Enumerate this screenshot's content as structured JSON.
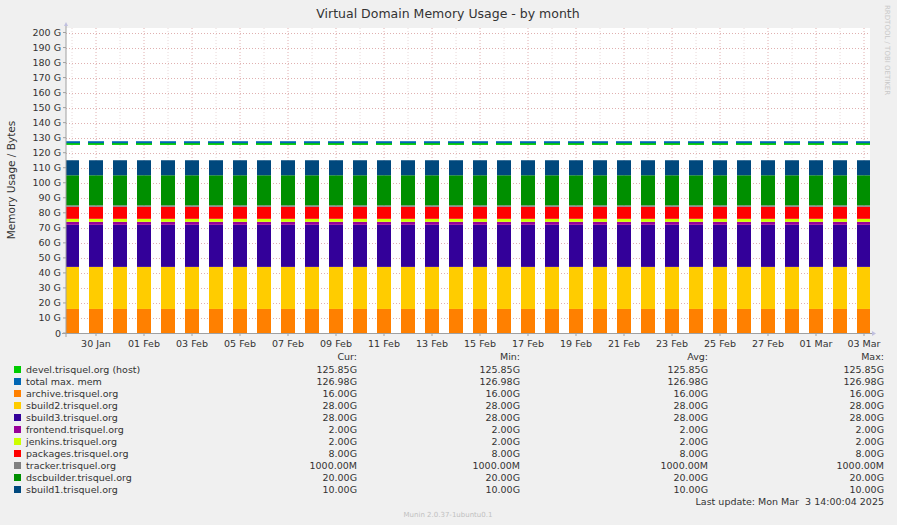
{
  "chart_data": {
    "type": "bar",
    "title": "Virtual Domain Memory Usage - by month",
    "y_label": "Memory Usage / Bytes",
    "side_text": "RRDTOOL / TOBI OETIKER",
    "last_update": "Last update: Mon Mar  3 14:00:04 2025",
    "footer": "Munin 2.0.37-1ubuntu0.1",
    "stacked": true,
    "grid": true,
    "categories": [
      null,
      "30 Jan",
      null,
      "01 Feb",
      null,
      "03 Feb",
      null,
      "05 Feb",
      null,
      "07 Feb",
      null,
      "09 Feb",
      null,
      "11 Feb",
      null,
      "13 Feb",
      null,
      "15 Feb",
      null,
      "17 Feb",
      null,
      "19 Feb",
      null,
      "21 Feb",
      null,
      "23 Feb",
      null,
      "25 Feb",
      null,
      "27 Feb",
      null,
      "01 Mar",
      null,
      "03 Mar"
    ],
    "ylim": [
      0,
      203
    ],
    "yticks": [
      0,
      {
        "value": 10,
        "label": "10 G"
      },
      {
        "value": 20,
        "label": "20 G"
      },
      {
        "value": 30,
        "label": "30 G"
      },
      {
        "value": 40,
        "label": "40 G"
      },
      {
        "value": 50,
        "label": "50 G"
      },
      {
        "value": 60,
        "label": "60 G"
      },
      {
        "value": 70,
        "label": "70 G"
      },
      {
        "value": 80,
        "label": "80 G"
      },
      {
        "value": 90,
        "label": "90 G"
      },
      {
        "value": 100,
        "label": "100 G"
      },
      {
        "value": 110,
        "label": "110 G"
      },
      {
        "value": 120,
        "label": "120 G"
      },
      {
        "value": 130,
        "label": "130 G"
      },
      {
        "value": 140,
        "label": "140 G"
      },
      {
        "value": 150,
        "label": "150 G"
      },
      {
        "value": 160,
        "label": "160 G"
      },
      {
        "value": 170,
        "label": "170 G"
      },
      {
        "value": 180,
        "label": "180 G"
      },
      {
        "value": 190,
        "label": "190 G"
      },
      {
        "value": 200,
        "label": "200 G"
      }
    ],
    "stat_headers": [
      "Cur:",
      "Min:",
      "Avg:",
      "Max:"
    ],
    "series": [
      {
        "name": "devel.trisquel.org (host)",
        "type": "line",
        "color": "#00CC00",
        "stats": [
          "125.85G",
          "125.85G",
          "125.85G",
          "125.85G"
        ],
        "values": [
          125.85,
          125.85,
          125.85,
          125.85,
          125.85,
          125.85,
          125.85,
          125.85,
          125.85,
          125.85,
          125.85,
          125.85,
          125.85,
          125.85,
          125.85,
          125.85,
          125.85,
          125.85,
          125.85,
          125.85,
          125.85,
          125.85,
          125.85,
          125.85,
          125.85,
          125.85,
          125.85,
          125.85,
          125.85,
          125.85,
          125.85,
          125.85,
          125.85,
          125.85
        ]
      },
      {
        "name": "total max. mem",
        "type": "line",
        "color": "#0066B3",
        "stats": [
          "126.98G",
          "126.98G",
          "126.98G",
          "126.98G"
        ],
        "values": [
          126.98,
          126.98,
          126.98,
          126.98,
          126.98,
          126.98,
          126.98,
          126.98,
          126.98,
          126.98,
          126.98,
          126.98,
          126.98,
          126.98,
          126.98,
          126.98,
          126.98,
          126.98,
          126.98,
          126.98,
          126.98,
          126.98,
          126.98,
          126.98,
          126.98,
          126.98,
          126.98,
          126.98,
          126.98,
          126.98,
          126.98,
          126.98,
          126.98,
          126.98
        ]
      },
      {
        "name": "archive.trisquel.org",
        "color": "#FF8000",
        "stats": [
          "16.00G",
          "16.00G",
          "16.00G",
          "16.00G"
        ],
        "values": [
          16,
          16,
          16,
          16,
          16,
          16,
          16,
          16,
          16,
          16,
          16,
          16,
          16,
          16,
          16,
          16,
          16,
          16,
          16,
          16,
          16,
          16,
          16,
          16,
          16,
          16,
          16,
          16,
          16,
          16,
          16,
          16,
          16,
          16
        ]
      },
      {
        "name": "sbuild2.trisquel.org",
        "color": "#FFCC00",
        "stats": [
          "28.00G",
          "28.00G",
          "28.00G",
          "28.00G"
        ],
        "values": [
          28,
          28,
          28,
          28,
          28,
          28,
          28,
          28,
          28,
          28,
          28,
          28,
          28,
          28,
          28,
          28,
          28,
          28,
          28,
          28,
          28,
          28,
          28,
          28,
          28,
          28,
          28,
          28,
          28,
          28,
          28,
          28,
          28,
          28
        ]
      },
      {
        "name": "sbuild3.trisquel.org",
        "color": "#330099",
        "stats": [
          "28.00G",
          "28.00G",
          "28.00G",
          "28.00G"
        ],
        "values": [
          28,
          28,
          28,
          28,
          28,
          28,
          28,
          28,
          28,
          28,
          28,
          28,
          28,
          28,
          28,
          28,
          28,
          28,
          28,
          28,
          28,
          28,
          28,
          28,
          28,
          28,
          28,
          28,
          28,
          28,
          28,
          28,
          28,
          28
        ]
      },
      {
        "name": "frontend.trisquel.org",
        "color": "#990099",
        "stats": [
          "2.00G",
          "2.00G",
          "2.00G",
          "2.00G"
        ],
        "values": [
          2,
          2,
          2,
          2,
          2,
          2,
          2,
          2,
          2,
          2,
          2,
          2,
          2,
          2,
          2,
          2,
          2,
          2,
          2,
          2,
          2,
          2,
          2,
          2,
          2,
          2,
          2,
          2,
          2,
          2,
          2,
          2,
          2,
          2
        ]
      },
      {
        "name": "jenkins.trisquel.org",
        "color": "#CCFF00",
        "stats": [
          "2.00G",
          "2.00G",
          "2.00G",
          "2.00G"
        ],
        "values": [
          2,
          2,
          2,
          2,
          2,
          2,
          2,
          2,
          2,
          2,
          2,
          2,
          2,
          2,
          2,
          2,
          2,
          2,
          2,
          2,
          2,
          2,
          2,
          2,
          2,
          2,
          2,
          2,
          2,
          2,
          2,
          2,
          2,
          2
        ]
      },
      {
        "name": "packages.trisquel.org",
        "color": "#FF0000",
        "stats": [
          "8.00G",
          "8.00G",
          "8.00G",
          "8.00G"
        ],
        "values": [
          8,
          8,
          8,
          8,
          8,
          8,
          8,
          8,
          8,
          8,
          8,
          8,
          8,
          8,
          8,
          8,
          8,
          8,
          8,
          8,
          8,
          8,
          8,
          8,
          8,
          8,
          8,
          8,
          8,
          8,
          8,
          8,
          8,
          8
        ]
      },
      {
        "name": "tracker.trisquel.org",
        "color": "#808080",
        "stats": [
          "1000.00M",
          "1000.00M",
          "1000.00M",
          "1000.00M"
        ],
        "values": [
          0.98,
          0.98,
          0.98,
          0.98,
          0.98,
          0.98,
          0.98,
          0.98,
          0.98,
          0.98,
          0.98,
          0.98,
          0.98,
          0.98,
          0.98,
          0.98,
          0.98,
          0.98,
          0.98,
          0.98,
          0.98,
          0.98,
          0.98,
          0.98,
          0.98,
          0.98,
          0.98,
          0.98,
          0.98,
          0.98,
          0.98,
          0.98,
          0.98,
          0.98
        ]
      },
      {
        "name": "dscbuilder.trisquel.org",
        "color": "#008F00",
        "stats": [
          "20.00G",
          "20.00G",
          "20.00G",
          "20.00G"
        ],
        "values": [
          20,
          20,
          20,
          20,
          20,
          20,
          20,
          20,
          20,
          20,
          20,
          20,
          20,
          20,
          20,
          20,
          20,
          20,
          20,
          20,
          20,
          20,
          20,
          20,
          20,
          20,
          20,
          20,
          20,
          20,
          20,
          20,
          20,
          20
        ]
      },
      {
        "name": "sbuild1.trisquel.org",
        "color": "#00487D",
        "stats": [
          "10.00G",
          "10.00G",
          "10.00G",
          "10.00G"
        ],
        "values": [
          10,
          10,
          10,
          10,
          10,
          10,
          10,
          10,
          10,
          10,
          10,
          10,
          10,
          10,
          10,
          10,
          10,
          10,
          10,
          10,
          10,
          10,
          10,
          10,
          10,
          10,
          10,
          10,
          10,
          10,
          10,
          10,
          10,
          10
        ]
      }
    ]
  }
}
